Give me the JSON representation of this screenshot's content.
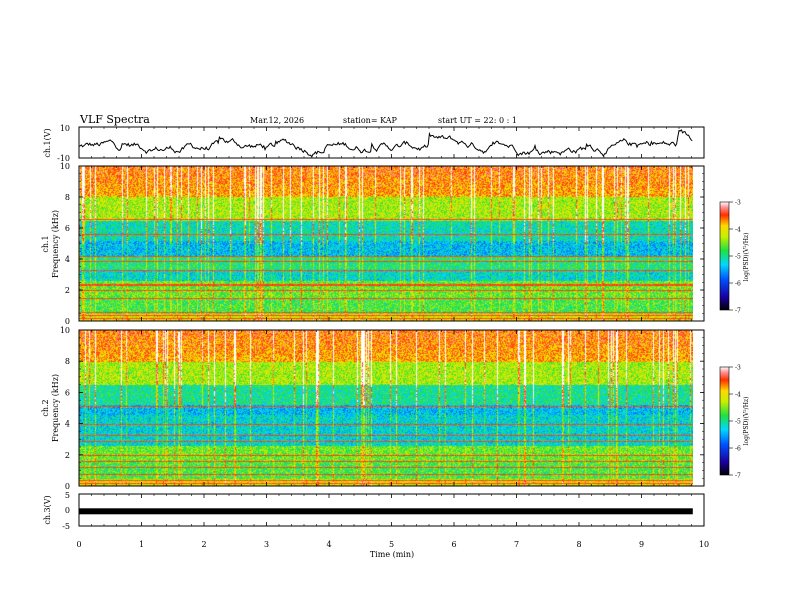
{
  "header": {
    "title": "VLF Spectra",
    "date": "Mar.12, 2026",
    "station": "station= KAP",
    "start_ut": "start  UT =  22: 0  : 1"
  },
  "chart_data": [
    {
      "type": "line",
      "name": "ch1-waveform",
      "ylabel": "ch.1(V)",
      "ylim": [
        -10,
        10
      ],
      "y_ticks": [
        "10",
        "-10"
      ],
      "x_range_min": [
        0,
        9.82
      ],
      "description_values": "noisy waveform mostly between 0 and -8 V"
    },
    {
      "type": "heatmap",
      "name": "ch1-spectrogram",
      "ylabel": "ch.1",
      "ylabel2": "Frequency (kHz)",
      "ylim": [
        0,
        10
      ],
      "y_ticks": [
        "0",
        "2",
        "4",
        "6",
        "8",
        "10"
      ],
      "x_range_min": [
        0,
        9.82
      ],
      "colorbar": {
        "label": "log(PSD)(V²/Hz)",
        "range": [
          -7,
          -3
        ],
        "ticks": [
          "-3",
          "-4",
          "-5",
          "-6",
          "-7"
        ]
      }
    },
    {
      "type": "heatmap",
      "name": "ch2-spectrogram",
      "ylabel": "ch.2",
      "ylabel2": "Frequency (kHz)",
      "ylim": [
        0,
        10
      ],
      "y_ticks": [
        "0",
        "2",
        "4",
        "6",
        "8",
        "10"
      ],
      "x_range_min": [
        0,
        9.82
      ],
      "colorbar": {
        "label": "log(PSD)(V²/Hz)",
        "range": [
          -7,
          -3
        ],
        "ticks": [
          "-3",
          "-4",
          "-5",
          "-6",
          "-7"
        ]
      }
    },
    {
      "type": "line",
      "name": "ch3-signal",
      "ylabel": "ch.3(V)",
      "ylim": [
        -5,
        5
      ],
      "y_ticks": [
        "5",
        "0",
        "-5"
      ],
      "constant_value": -0.4,
      "x_range_min": [
        0,
        9.82
      ]
    }
  ],
  "xaxis": {
    "label": "Time (min)",
    "range": [
      0,
      10
    ],
    "ticks": [
      "0",
      "1",
      "2",
      "3",
      "4",
      "5",
      "6",
      "7",
      "8",
      "9",
      "10"
    ]
  }
}
